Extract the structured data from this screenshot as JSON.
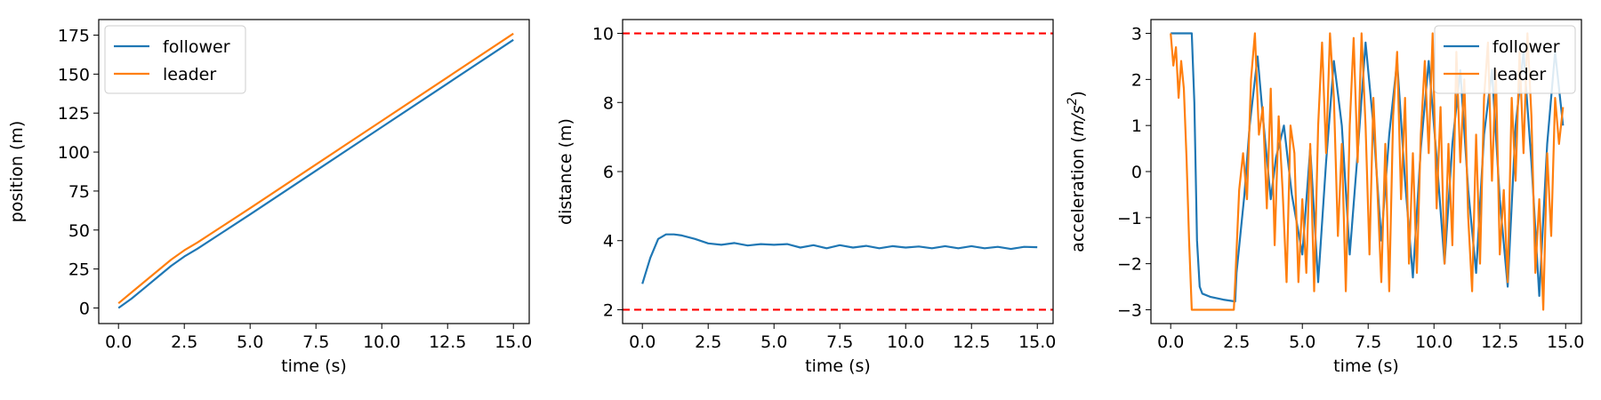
{
  "colors": {
    "follower": "#1f77b4",
    "leader": "#ff7f0e",
    "limit": "#ff0000"
  },
  "chart_data": [
    {
      "type": "line",
      "xlabel": "time (s)",
      "ylabel": "position (m)",
      "xlim": [
        -0.75,
        15.6
      ],
      "ylim": [
        -10,
        185
      ],
      "xticks": [
        0.0,
        2.5,
        5.0,
        7.5,
        10.0,
        12.5,
        15.0
      ],
      "xtick_labels": [
        "0.0",
        "2.5",
        "5.0",
        "7.5",
        "10.0",
        "12.5",
        "15.0"
      ],
      "yticks": [
        0,
        25,
        50,
        75,
        100,
        125,
        150,
        175
      ],
      "ytick_labels": [
        "0",
        "25",
        "50",
        "75",
        "100",
        "125",
        "150",
        "175"
      ],
      "legend": "upper left",
      "series": [
        {
          "name": "follower",
          "color": "#1f77b4",
          "x": [
            0,
            0.5,
            1.0,
            1.5,
            2.0,
            2.5,
            3.0,
            4.0,
            5.0,
            7.5,
            10.0,
            12.5,
            15.0
          ],
          "y": [
            0,
            6,
            13,
            20,
            27,
            33,
            38,
            49,
            60,
            88,
            116,
            144,
            172
          ]
        },
        {
          "name": "leader",
          "color": "#ff7f0e",
          "x": [
            0,
            0.5,
            1.0,
            1.5,
            2.0,
            2.5,
            3.0,
            4.0,
            5.0,
            7.5,
            10.0,
            12.5,
            15.0
          ],
          "y": [
            3,
            10,
            17,
            24,
            31,
            37,
            42,
            53,
            64,
            92,
            120,
            148,
            176
          ]
        }
      ]
    },
    {
      "type": "line",
      "xlabel": "time (s)",
      "ylabel": "distance (m)",
      "xlim": [
        -0.75,
        15.6
      ],
      "ylim": [
        1.6,
        10.4
      ],
      "xticks": [
        0.0,
        2.5,
        5.0,
        7.5,
        10.0,
        12.5,
        15.0
      ],
      "xtick_labels": [
        "0.0",
        "2.5",
        "5.0",
        "7.5",
        "10.0",
        "12.5",
        "15.0"
      ],
      "yticks": [
        2,
        4,
        6,
        8,
        10
      ],
      "ytick_labels": [
        "2",
        "4",
        "6",
        "8",
        "10"
      ],
      "hlines": [
        {
          "y": 10,
          "color": "#ff0000",
          "style": "dashed"
        },
        {
          "y": 2,
          "color": "#ff0000",
          "style": "dashed"
        }
      ],
      "series": [
        {
          "color": "#1f77b4",
          "x": [
            0,
            0.3,
            0.6,
            0.9,
            1.2,
            1.5,
            2.0,
            2.5,
            3.0,
            3.5,
            4.0,
            4.5,
            5.0,
            5.5,
            6.0,
            6.5,
            7.0,
            7.5,
            8.0,
            8.5,
            9.0,
            9.5,
            10.0,
            10.5,
            11.0,
            11.5,
            12.0,
            12.5,
            13.0,
            13.5,
            14.0,
            14.5,
            15.0
          ],
          "y": [
            2.75,
            3.5,
            4.05,
            4.18,
            4.18,
            4.15,
            4.05,
            3.92,
            3.88,
            3.93,
            3.86,
            3.9,
            3.88,
            3.9,
            3.8,
            3.87,
            3.78,
            3.87,
            3.8,
            3.85,
            3.78,
            3.84,
            3.8,
            3.83,
            3.78,
            3.84,
            3.78,
            3.84,
            3.78,
            3.82,
            3.76,
            3.82,
            3.81
          ]
        }
      ]
    },
    {
      "type": "line",
      "xlabel": "time (s)",
      "ylabel": "acceleration (m/s²)",
      "xlim": [
        -0.75,
        15.6
      ],
      "ylim": [
        -3.3,
        3.3
      ],
      "xticks": [
        0.0,
        2.5,
        5.0,
        7.5,
        10.0,
        12.5,
        15.0
      ],
      "xtick_labels": [
        "0.0",
        "2.5",
        "5.0",
        "7.5",
        "10.0",
        "12.5",
        "15.0"
      ],
      "yticks": [
        -3,
        -2,
        -1,
        0,
        1,
        2,
        3
      ],
      "ytick_labels": [
        "−3",
        "−2",
        "−1",
        "0",
        "1",
        "2",
        "3"
      ],
      "legend": "upper right",
      "series": [
        {
          "name": "follower",
          "color": "#1f77b4",
          "x": [
            0,
            0.8,
            0.9,
            1.0,
            1.1,
            1.2,
            1.5,
            2.0,
            2.45,
            2.5,
            2.8,
            3.0,
            3.3,
            3.5,
            3.8,
            4.0,
            4.3,
            4.6,
            5.0,
            5.3,
            5.6,
            5.9,
            6.2,
            6.5,
            6.8,
            7.1,
            7.4,
            7.7,
            8.0,
            8.3,
            8.6,
            8.9,
            9.2,
            9.5,
            9.8,
            10.1,
            10.4,
            10.7,
            11.0,
            11.3,
            11.6,
            11.9,
            12.2,
            12.5,
            12.8,
            13.1,
            13.4,
            13.7,
            14.0,
            14.3,
            14.6,
            14.9
          ],
          "y": [
            3,
            3,
            1.5,
            -1.5,
            -2.5,
            -2.65,
            -2.72,
            -2.78,
            -2.82,
            -2.2,
            -0.5,
            1.0,
            2.5,
            1.2,
            -0.6,
            0.3,
            1.0,
            -0.5,
            -1.8,
            0.5,
            -2.4,
            0.2,
            2.4,
            1.0,
            -1.8,
            0.4,
            2.8,
            1.0,
            -1.5,
            0.8,
            2.4,
            -0.2,
            -2.3,
            0.5,
            2.4,
            0.3,
            -2.0,
            0.6,
            2.2,
            -0.4,
            -2.2,
            0.8,
            2.2,
            -0.6,
            -2.5,
            1.0,
            2.6,
            0.2,
            -2.7,
            0.6,
            2.6,
            1.0
          ]
        },
        {
          "name": "leader",
          "color": "#ff7f0e",
          "x": [
            0,
            0.1,
            0.2,
            0.3,
            0.4,
            0.5,
            0.6,
            0.7,
            0.8,
            2.4,
            2.45,
            2.6,
            2.75,
            2.9,
            3.05,
            3.2,
            3.35,
            3.5,
            3.65,
            3.8,
            3.95,
            4.1,
            4.25,
            4.4,
            4.55,
            4.7,
            4.85,
            5.0,
            5.15,
            5.3,
            5.45,
            5.6,
            5.75,
            5.9,
            6.05,
            6.2,
            6.35,
            6.5,
            6.65,
            6.8,
            6.95,
            7.1,
            7.25,
            7.4,
            7.55,
            7.7,
            7.85,
            8.0,
            8.15,
            8.3,
            8.45,
            8.6,
            8.75,
            8.9,
            9.05,
            9.2,
            9.35,
            9.5,
            9.65,
            9.8,
            9.95,
            10.1,
            10.25,
            10.4,
            10.55,
            10.7,
            10.85,
            11.0,
            11.15,
            11.3,
            11.45,
            11.6,
            11.75,
            11.9,
            12.05,
            12.2,
            12.35,
            12.5,
            12.65,
            12.8,
            12.95,
            13.1,
            13.25,
            13.4,
            13.55,
            13.7,
            13.85,
            14.0,
            14.15,
            14.3,
            14.45,
            14.6,
            14.75,
            14.9
          ],
          "y": [
            3.0,
            2.3,
            2.7,
            1.6,
            2.4,
            1.8,
            0.3,
            -1.5,
            -3.0,
            -3.0,
            -2.4,
            -0.4,
            0.4,
            -0.6,
            2.0,
            3.0,
            0.8,
            1.4,
            -0.8,
            1.8,
            -1.6,
            1.2,
            -0.4,
            -2.4,
            1.0,
            0.4,
            -2.4,
            -0.6,
            -2.2,
            0.6,
            -2.6,
            1.0,
            2.8,
            0.4,
            3.0,
            1.6,
            -1.4,
            0.6,
            -2.6,
            1.0,
            2.9,
            0.2,
            3.0,
            1.0,
            -1.8,
            1.6,
            -0.4,
            -2.4,
            0.6,
            -2.6,
            1.2,
            2.6,
            -0.6,
            1.6,
            -2.0,
            0.4,
            -2.2,
            0.8,
            2.4,
            0.4,
            3.0,
            -0.8,
            1.4,
            -2.0,
            0.6,
            -1.6,
            2.6,
            0.2,
            2.0,
            -1.0,
            -2.6,
            0.8,
            -2.0,
            1.6,
            2.8,
            -0.2,
            2.2,
            -1.8,
            -0.4,
            -2.4,
            1.6,
            -0.2,
            2.6,
            0.4,
            3.0,
            1.2,
            -2.2,
            -0.6,
            -3.0,
            0.4,
            -1.4,
            1.6,
            0.6,
            1.4
          ]
        }
      ]
    }
  ]
}
